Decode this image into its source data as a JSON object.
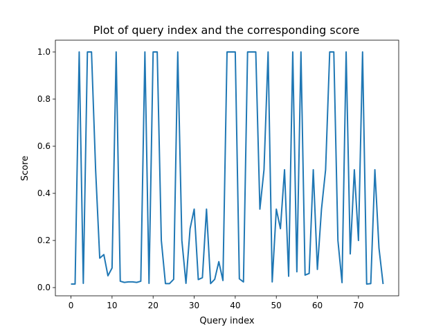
{
  "chart_data": {
    "type": "line",
    "title": "Plot of query index and the corresponding score",
    "xlabel": "Query index",
    "ylabel": "Score",
    "xlim": [
      -3.8,
      79.8
    ],
    "ylim": [
      -0.035,
      1.05
    ],
    "xticks": [
      0,
      10,
      20,
      30,
      40,
      50,
      60,
      70
    ],
    "yticks": [
      0.0,
      0.2,
      0.4,
      0.6,
      0.8,
      1.0
    ],
    "ytick_labels": [
      "0.0",
      "0.2",
      "0.4",
      "0.6",
      "0.8",
      "1.0"
    ],
    "grid": false,
    "legend": "none",
    "line_color": "#1f77b4",
    "series": [
      {
        "x": [
          0,
          1,
          2,
          3,
          4,
          5,
          6,
          7,
          8,
          9,
          10,
          11,
          12,
          13,
          14,
          15,
          16,
          17,
          18,
          19,
          20,
          21,
          22,
          23,
          24,
          25,
          26,
          27,
          28,
          29,
          30,
          31,
          32,
          33,
          34,
          35,
          36,
          37,
          38,
          39,
          40,
          41,
          42,
          43,
          44,
          45,
          46,
          47,
          48,
          49,
          50,
          51,
          52,
          53,
          54,
          55,
          56,
          57,
          58,
          59,
          60,
          61,
          62,
          63,
          64,
          65,
          66,
          67,
          68,
          69,
          70,
          71,
          72,
          73,
          74,
          75,
          76
        ],
        "values": [
          0.015,
          0.015,
          1.0,
          0.018,
          1.0,
          1.0,
          0.5,
          0.125,
          0.14,
          0.05,
          0.083,
          1.0,
          0.027,
          0.022,
          0.024,
          0.024,
          0.022,
          0.027,
          1.0,
          0.018,
          1.0,
          1.0,
          0.2,
          0.017,
          0.017,
          0.035,
          1.0,
          0.2,
          0.018,
          0.25,
          0.333,
          0.034,
          0.042,
          0.333,
          0.017,
          0.035,
          0.11,
          0.03,
          1.0,
          1.0,
          1.0,
          0.037,
          0.024,
          1.0,
          1.0,
          1.0,
          0.333,
          0.5,
          1.0,
          0.024,
          0.333,
          0.25,
          0.5,
          0.048,
          1.0,
          0.067,
          1.0,
          0.053,
          0.06,
          0.5,
          0.077,
          0.333,
          0.5,
          1.0,
          1.0,
          0.2,
          0.021,
          1.0,
          0.143,
          0.5,
          0.2,
          1.0,
          0.015,
          0.017,
          0.5,
          0.167,
          0.015
        ]
      }
    ]
  }
}
